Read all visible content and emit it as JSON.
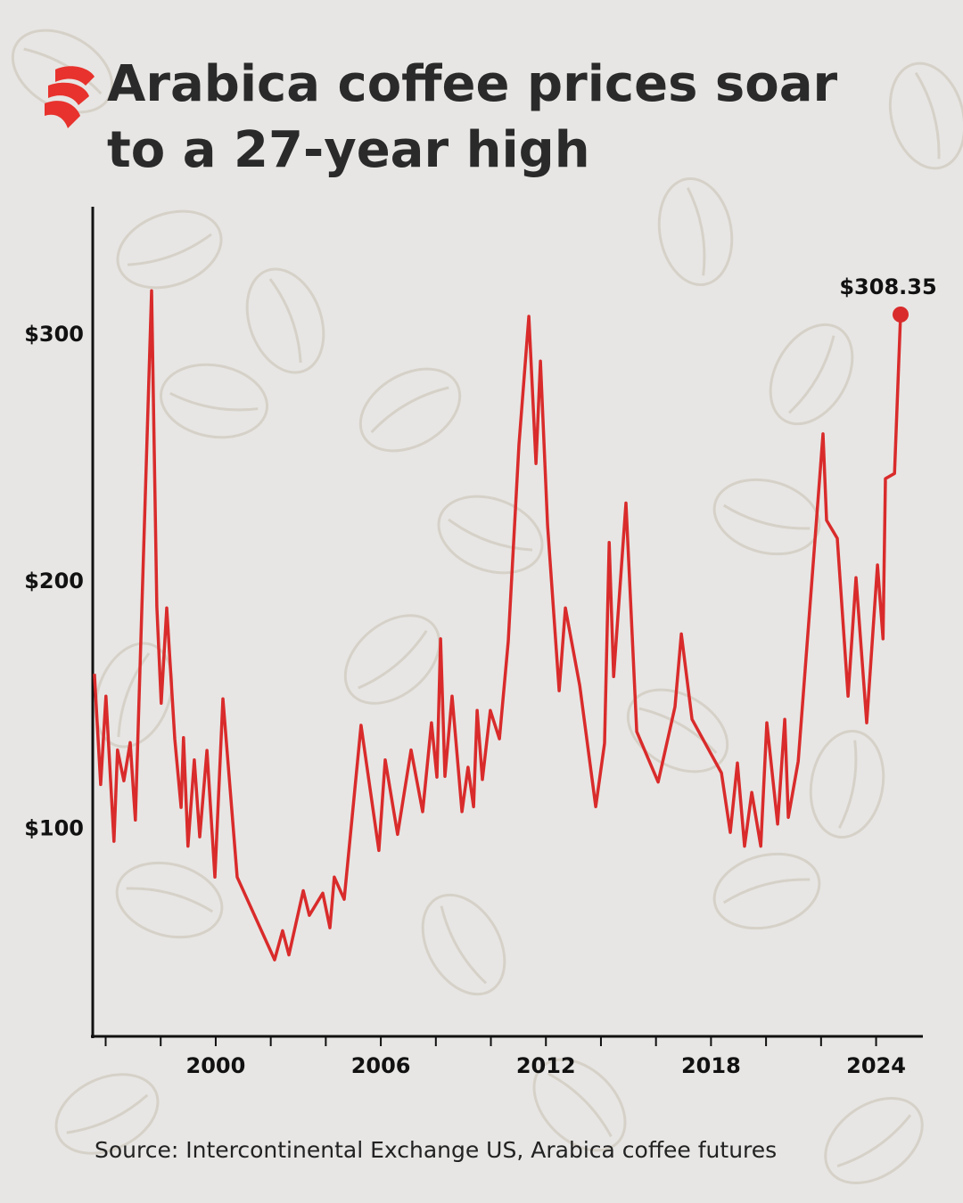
{
  "chart_data": {
    "type": "line",
    "title": "Arabica coffee prices soar to a 27-year high",
    "source": "Source: Intercontinental Exchange US, Arabica coffee futures",
    "x": [
      1995.59,
      1995.82,
      1996.01,
      1996.3,
      1996.43,
      1996.66,
      1996.89,
      1997.08,
      1997.67,
      1997.86,
      1998.02,
      1998.22,
      1998.51,
      1998.74,
      1998.83,
      1998.99,
      1999.22,
      1999.42,
      1999.68,
      1999.97,
      2000.26,
      2000.78,
      2002.14,
      2002.43,
      2002.66,
      2003.18,
      2003.4,
      2003.89,
      2004.15,
      2004.31,
      2004.67,
      2005.28,
      2005.93,
      2006.16,
      2006.61,
      2007.1,
      2007.52,
      2007.84,
      2008.04,
      2008.17,
      2008.33,
      2008.59,
      2008.95,
      2009.17,
      2009.37,
      2009.5,
      2009.69,
      2009.98,
      2010.31,
      2010.63,
      2011.02,
      2011.38,
      2011.64,
      2011.8,
      2012.06,
      2012.48,
      2012.71,
      2013.23,
      2013.81,
      2014.13,
      2014.3,
      2014.46,
      2014.91,
      2015.3,
      2016.08,
      2016.69,
      2016.92,
      2017.31,
      2018.38,
      2018.7,
      2018.96,
      2019.22,
      2019.48,
      2019.81,
      2020.03,
      2020.42,
      2020.68,
      2020.81,
      2021.17,
      2022.07,
      2022.2,
      2022.59,
      2022.98,
      2023.27,
      2023.66,
      2024.05,
      2024.25,
      2024.34,
      2024.67,
      2024.89
    ],
    "series": [
      {
        "color": "#d92b2b",
        "values": [
          162.8,
          118,
          153.8,
          95,
          132,
          119.5,
          135,
          103.6,
          318,
          190,
          150.9,
          189.5,
          136.5,
          108.7,
          137,
          93,
          128,
          96.8,
          131.8,
          80.5,
          152.7,
          80.5,
          47,
          58.8,
          49,
          75,
          65,
          74,
          60,
          80.5,
          71.5,
          142,
          91.3,
          128,
          97.8,
          132,
          107,
          143,
          121,
          177,
          121.3,
          153.8,
          107,
          125,
          109,
          148,
          120,
          148,
          136.5,
          176,
          255.6,
          307.6,
          248,
          289.5,
          223,
          156,
          189.5,
          158,
          109,
          134.7,
          216,
          161.7,
          232,
          139.4,
          119,
          149.5,
          179,
          144.4,
          122.7,
          98.6,
          126.7,
          93,
          114.8,
          93,
          143,
          102,
          144.4,
          104.7,
          127.4,
          260,
          225,
          217.7,
          153.8,
          201.8,
          143,
          206.9,
          177,
          241.9,
          244,
          308.35
        ],
        "value_labels": [
          null,
          null,
          null,
          null,
          null,
          null,
          null,
          null,
          null,
          null,
          null,
          null,
          null,
          null,
          null,
          null,
          null,
          null,
          null,
          null,
          null,
          null,
          null,
          null,
          null,
          null,
          null,
          null,
          null,
          null,
          null,
          null,
          null,
          null,
          null,
          null,
          null,
          null,
          null,
          null,
          null,
          null,
          null,
          null,
          null,
          null,
          null,
          null,
          null,
          null,
          null,
          null,
          null,
          null,
          null,
          null,
          null,
          null,
          null,
          null,
          null,
          null,
          null,
          null,
          null,
          null,
          null,
          null,
          null,
          null,
          null,
          null,
          null,
          null,
          null,
          null,
          null,
          null,
          null,
          null,
          null,
          null,
          null,
          null,
          null,
          null,
          null,
          null,
          null,
          "$308.35"
        ]
      }
    ],
    "xlim": [
      1995.53,
      2025.7
    ],
    "xticks": [
      2000,
      2006,
      2012,
      2018,
      2024
    ],
    "xminor_ticks": [
      1996,
      1998,
      2000,
      2002,
      2004,
      2006,
      2008,
      2010,
      2012,
      2014,
      2016,
      2018,
      2020,
      2022,
      2024
    ],
    "ylim": [
      16,
      352
    ],
    "yticks": [
      {
        "value": 100,
        "label": "$100"
      },
      {
        "value": 200,
        "label": "$200"
      },
      {
        "value": 300,
        "label": "$300"
      }
    ],
    "grid": false
  }
}
